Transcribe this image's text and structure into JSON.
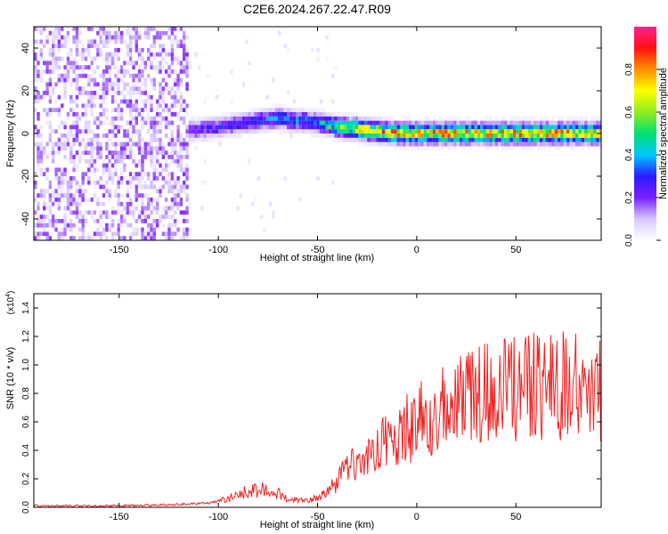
{
  "title": "C2E6.2024.267.22.47.R09",
  "colors": {
    "snr_line": "#ee2222",
    "background": "#ffffff",
    "colormap": [
      "#ffffff",
      "#d8c8ff",
      "#7a1fff",
      "#2a1bff",
      "#00c8ff",
      "#00e070",
      "#90ee20",
      "#ffff00",
      "#ff9000",
      "#ff1010",
      "#ff2090"
    ]
  },
  "chart_data": [
    {
      "type": "heatmap",
      "xlabel": "Height of straight line (km)",
      "ylabel": "Frequency (Hz)",
      "xlim": [
        -193,
        93
      ],
      "ylim": [
        -50,
        50
      ],
      "xticks": [
        -150,
        -100,
        -50,
        0,
        50
      ],
      "yticks": [
        -40,
        -20,
        0,
        20,
        40
      ],
      "colorbar": {
        "label": "Normalized spectral amplitude",
        "range": [
          0,
          1
        ],
        "ticks": [
          "0.0",
          "0.2",
          "0.4",
          "0.6",
          "0.8"
        ],
        "tick_values": [
          0.0,
          0.2,
          0.4,
          0.6,
          0.8
        ]
      },
      "ridge": {
        "x": [
          -140,
          -120,
          -100,
          -80,
          -70,
          -60,
          -50,
          -40,
          -30,
          -20,
          -10,
          0,
          20,
          40,
          60,
          80,
          93
        ],
        "freq_center": [
          0,
          0,
          2,
          5,
          6,
          5,
          4,
          2,
          1,
          0,
          -1,
          -1,
          -1,
          -1,
          -1,
          -1,
          -1
        ],
        "amplitude": [
          0.2,
          0.25,
          0.3,
          0.35,
          0.4,
          0.4,
          0.45,
          0.6,
          0.75,
          0.85,
          0.85,
          0.85,
          0.85,
          0.85,
          0.85,
          0.85,
          0.85
        ]
      },
      "noise_region": {
        "x_range": [
          -193,
          -115
        ],
        "amplitude": 0.1
      }
    },
    {
      "type": "line",
      "xlabel": "Height of straight line (km)",
      "ylabel": "SNR (10 * v/v)",
      "multiplier": "(x10",
      "multiplier_exp": "4",
      "multiplier_close": ")",
      "xlim": [
        -193,
        93
      ],
      "ylim": [
        0,
        1.5
      ],
      "xticks": [
        -150,
        -100,
        -50,
        0,
        50
      ],
      "yticks": [
        "0.0",
        "0.2",
        "0.4",
        "0.6",
        "0.8",
        "1.0",
        "1.2",
        "1.4"
      ],
      "ytick_values": [
        0.0,
        0.2,
        0.4,
        0.6,
        0.8,
        1.0,
        1.2,
        1.4
      ],
      "series": [
        {
          "x": [
            -193,
            -150,
            -120,
            -105,
            -95,
            -85,
            -75,
            -65,
            -55,
            -45,
            -40,
            -35,
            -30,
            -25,
            -20,
            -10,
            0,
            10,
            20,
            30,
            40,
            50,
            60,
            70,
            80,
            85,
            93
          ],
          "y": [
            0.01,
            0.01,
            0.02,
            0.03,
            0.06,
            0.11,
            0.13,
            0.06,
            0.05,
            0.1,
            0.18,
            0.28,
            0.3,
            0.34,
            0.42,
            0.52,
            0.58,
            0.66,
            0.76,
            0.8,
            0.82,
            0.84,
            0.85,
            0.85,
            0.86,
            0.88,
            0.8
          ]
        }
      ]
    }
  ]
}
